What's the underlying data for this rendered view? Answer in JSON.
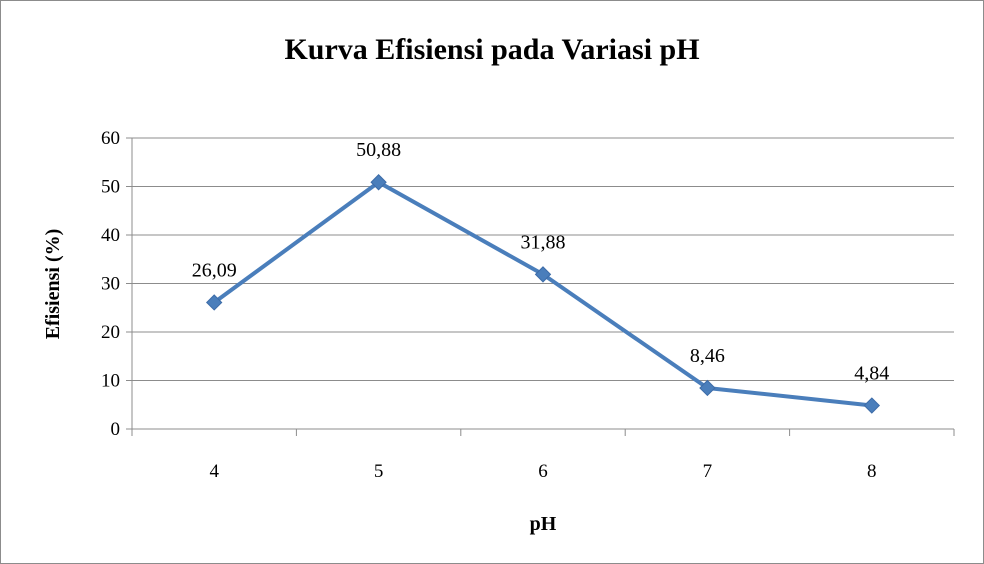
{
  "chart_data": {
    "type": "line",
    "title": "Kurva Efisiensi pada Variasi pH",
    "xlabel": "pH",
    "ylabel": "Efisiensi (%)",
    "categories": [
      "4",
      "5",
      "6",
      "7",
      "8"
    ],
    "series": [
      {
        "values": [
          26.09,
          50.88,
          31.88,
          8.46,
          4.84
        ],
        "data_labels": [
          "26,09",
          "50,88",
          "31,88",
          "8,46",
          "4,84"
        ],
        "color": "#4a7ebb",
        "marker": "diamond"
      }
    ],
    "ylim": [
      0,
      60
    ],
    "yticks": [
      0,
      10,
      20,
      30,
      40,
      50,
      60
    ],
    "grid": true,
    "legend": "none"
  }
}
